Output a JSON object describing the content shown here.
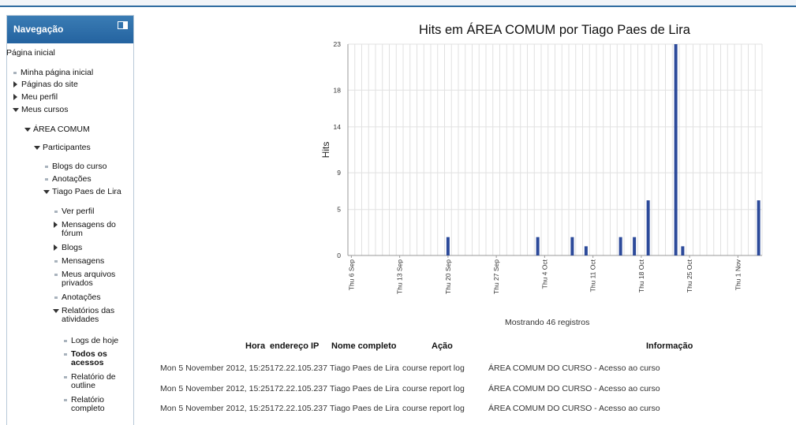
{
  "navigation": {
    "title": "Navegação",
    "items": {
      "home": "Página inicial",
      "my_home": "Minha página inicial",
      "site_pages": "Páginas do site",
      "my_profile": "Meu perfil",
      "my_courses": "Meus cursos",
      "course": "ÁREA COMUM",
      "participants": "Participantes",
      "course_blogs": "Blogs do curso",
      "notes": "Anotações",
      "user": "Tiago Paes de Lira",
      "view_profile": "Ver perfil",
      "forum_posts_1": "Mensagens do",
      "forum_posts_2": "fórum",
      "blogs": "Blogs",
      "messages": "Mensagens",
      "private_files_1": "Meus arquivos",
      "private_files_2": "privados",
      "user_notes": "Anotações",
      "activity_reports_1": "Relatórios das",
      "activity_reports_2": "atividades",
      "todays_logs": "Logs de hoje",
      "all_logs_1": "Todos os",
      "all_logs_2": "acessos",
      "outline_report_1": "Relatório de",
      "outline_report_2": "outline",
      "complete_report_1": "Relatório",
      "complete_report_2": "completo"
    }
  },
  "chart_data": {
    "type": "bar",
    "title": "Hits em ÁREA COMUM por Tiago Paes de Lira",
    "ylabel": "Hits",
    "xlabel": "",
    "ylim": [
      0,
      23
    ],
    "yticks": [
      0,
      5,
      9,
      14,
      18,
      23
    ],
    "grid": true,
    "color": "#2c4a9a",
    "x_tick_labels": [
      "Thu 6 Sep",
      "Thu 13 Sep",
      "Thu 20 Sep",
      "Thu 27 Sep",
      "Thu 4 Oct",
      "Thu 11 Oct",
      "Thu 18 Oct",
      "Thu 25 Oct",
      "Thu 1 Nov"
    ],
    "x_tick_day_index": [
      0,
      7,
      14,
      21,
      28,
      35,
      42,
      49,
      56
    ],
    "values": [
      0,
      0,
      0,
      0,
      0,
      0,
      0,
      0,
      0,
      0,
      0,
      0,
      0,
      0,
      2,
      0,
      0,
      0,
      0,
      0,
      0,
      0,
      0,
      0,
      0,
      0,
      0,
      2,
      0,
      0,
      0,
      0,
      2,
      0,
      1,
      0,
      0,
      0,
      0,
      2,
      0,
      2,
      0,
      6,
      0,
      0,
      0,
      23,
      1,
      0,
      0,
      0,
      0,
      0,
      0,
      0,
      0,
      0,
      0,
      6
    ]
  },
  "records_label": "Mostrando 46 registros",
  "log_table": {
    "headers": [
      "Hora",
      "endereço IP",
      "Nome completo",
      "Ação",
      "Informação"
    ],
    "rows": [
      [
        "Mon 5 November 2012, 15:25",
        "172.22.105.237",
        "Tiago Paes de Lira",
        "course report log",
        "ÁREA COMUM DO CURSO - Acesso ao curso"
      ],
      [
        "Mon 5 November 2012, 15:25",
        "172.22.105.237",
        "Tiago Paes de Lira",
        "course report log",
        "ÁREA COMUM DO CURSO - Acesso ao curso"
      ],
      [
        "Mon 5 November 2012, 15:25",
        "172.22.105.237",
        "Tiago Paes de Lira",
        "course report log",
        "ÁREA COMUM DO CURSO - Acesso ao curso"
      ]
    ]
  }
}
